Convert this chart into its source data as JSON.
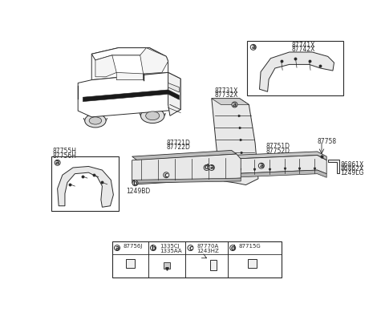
{
  "bg_color": "#ffffff",
  "line_color": "#2a2a2a",
  "light_fill": "#e8e8e8",
  "mid_fill": "#d5d5d5",
  "parts": {
    "top_right": [
      "87741X",
      "87742X"
    ],
    "mid_right_upper": [
      "87731X",
      "87732X"
    ],
    "mid_right_lower": [
      "87751D",
      "87752D"
    ],
    "center_strip": [
      "87721D",
      "87722D"
    ],
    "left_box": [
      "87755H",
      "87756H"
    ],
    "clip_top": "87758",
    "clip_right1": "86861X",
    "clip_right2": "86862X",
    "clip_right3": "1249LG",
    "clip_bottom": "1249BD"
  },
  "legend": [
    {
      "id": "a",
      "num": "87756J"
    },
    {
      "id": "b",
      "num1": "1335CJ",
      "num2": "1335AA"
    },
    {
      "id": "c",
      "num1": "87770A",
      "num2": "1243HZ"
    },
    {
      "id": "d",
      "num": "87715G"
    }
  ]
}
